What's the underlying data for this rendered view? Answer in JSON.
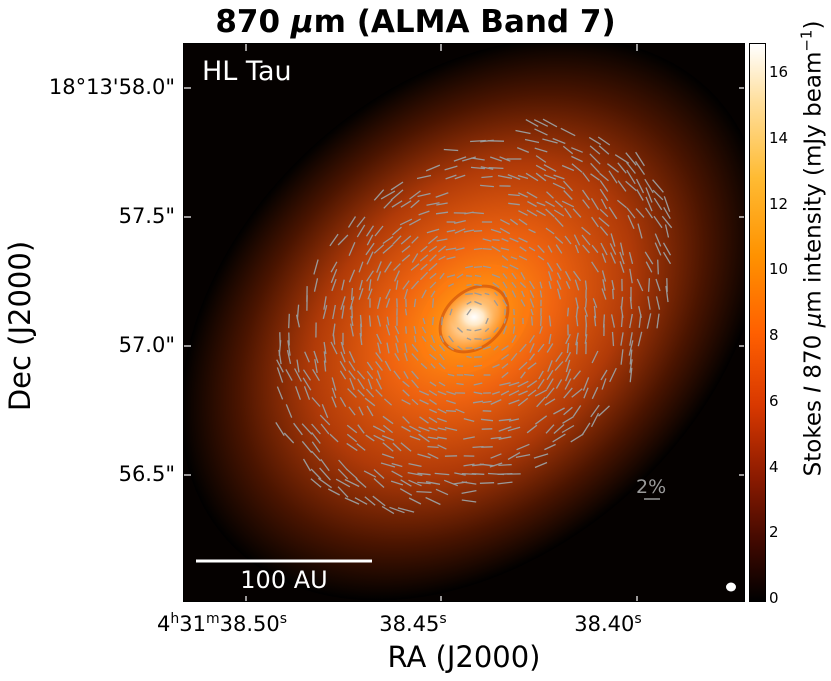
{
  "figure": {
    "title_pre": "870 ",
    "title_mu": "μ",
    "title_post": "m (ALMA Band 7)",
    "source_label": "HL Tau",
    "polarization_reference": "2%",
    "scale_bar_label": "100 AU",
    "x_axis_label": "RA (J2000)",
    "y_axis_label": "Dec (J2000)",
    "y_ticks": [
      "18°13'58.0\"",
      "57.5\"",
      "57.0\"",
      "56.5\""
    ],
    "x_ticks": {
      "t1": {
        "h": "4",
        "hs": "h",
        "m": "31",
        "ms": "m",
        "s": "38.50",
        "ss": "s"
      },
      "t2": {
        "s": "38.45",
        "ss": "s"
      },
      "t3": {
        "s": "38.40",
        "ss": "s"
      }
    },
    "colorbar": {
      "label_pre": "Stokes ",
      "label_I": "I",
      "label_mid": " 870 ",
      "label_mu": "μ",
      "label_post": "m intensity (mJy beam",
      "label_exp": "−1",
      "label_close": ")",
      "ticks": [
        "0",
        "2",
        "4",
        "6",
        "8",
        "10",
        "12",
        "14",
        "16"
      ],
      "min": 0,
      "max": 17,
      "colormap": [
        "#000000",
        "#8a1a00",
        "#ff5f00",
        "#ff9200",
        "#ffe0a0",
        "#ffffff"
      ]
    },
    "vector_color": "#9a9a9a"
  }
}
